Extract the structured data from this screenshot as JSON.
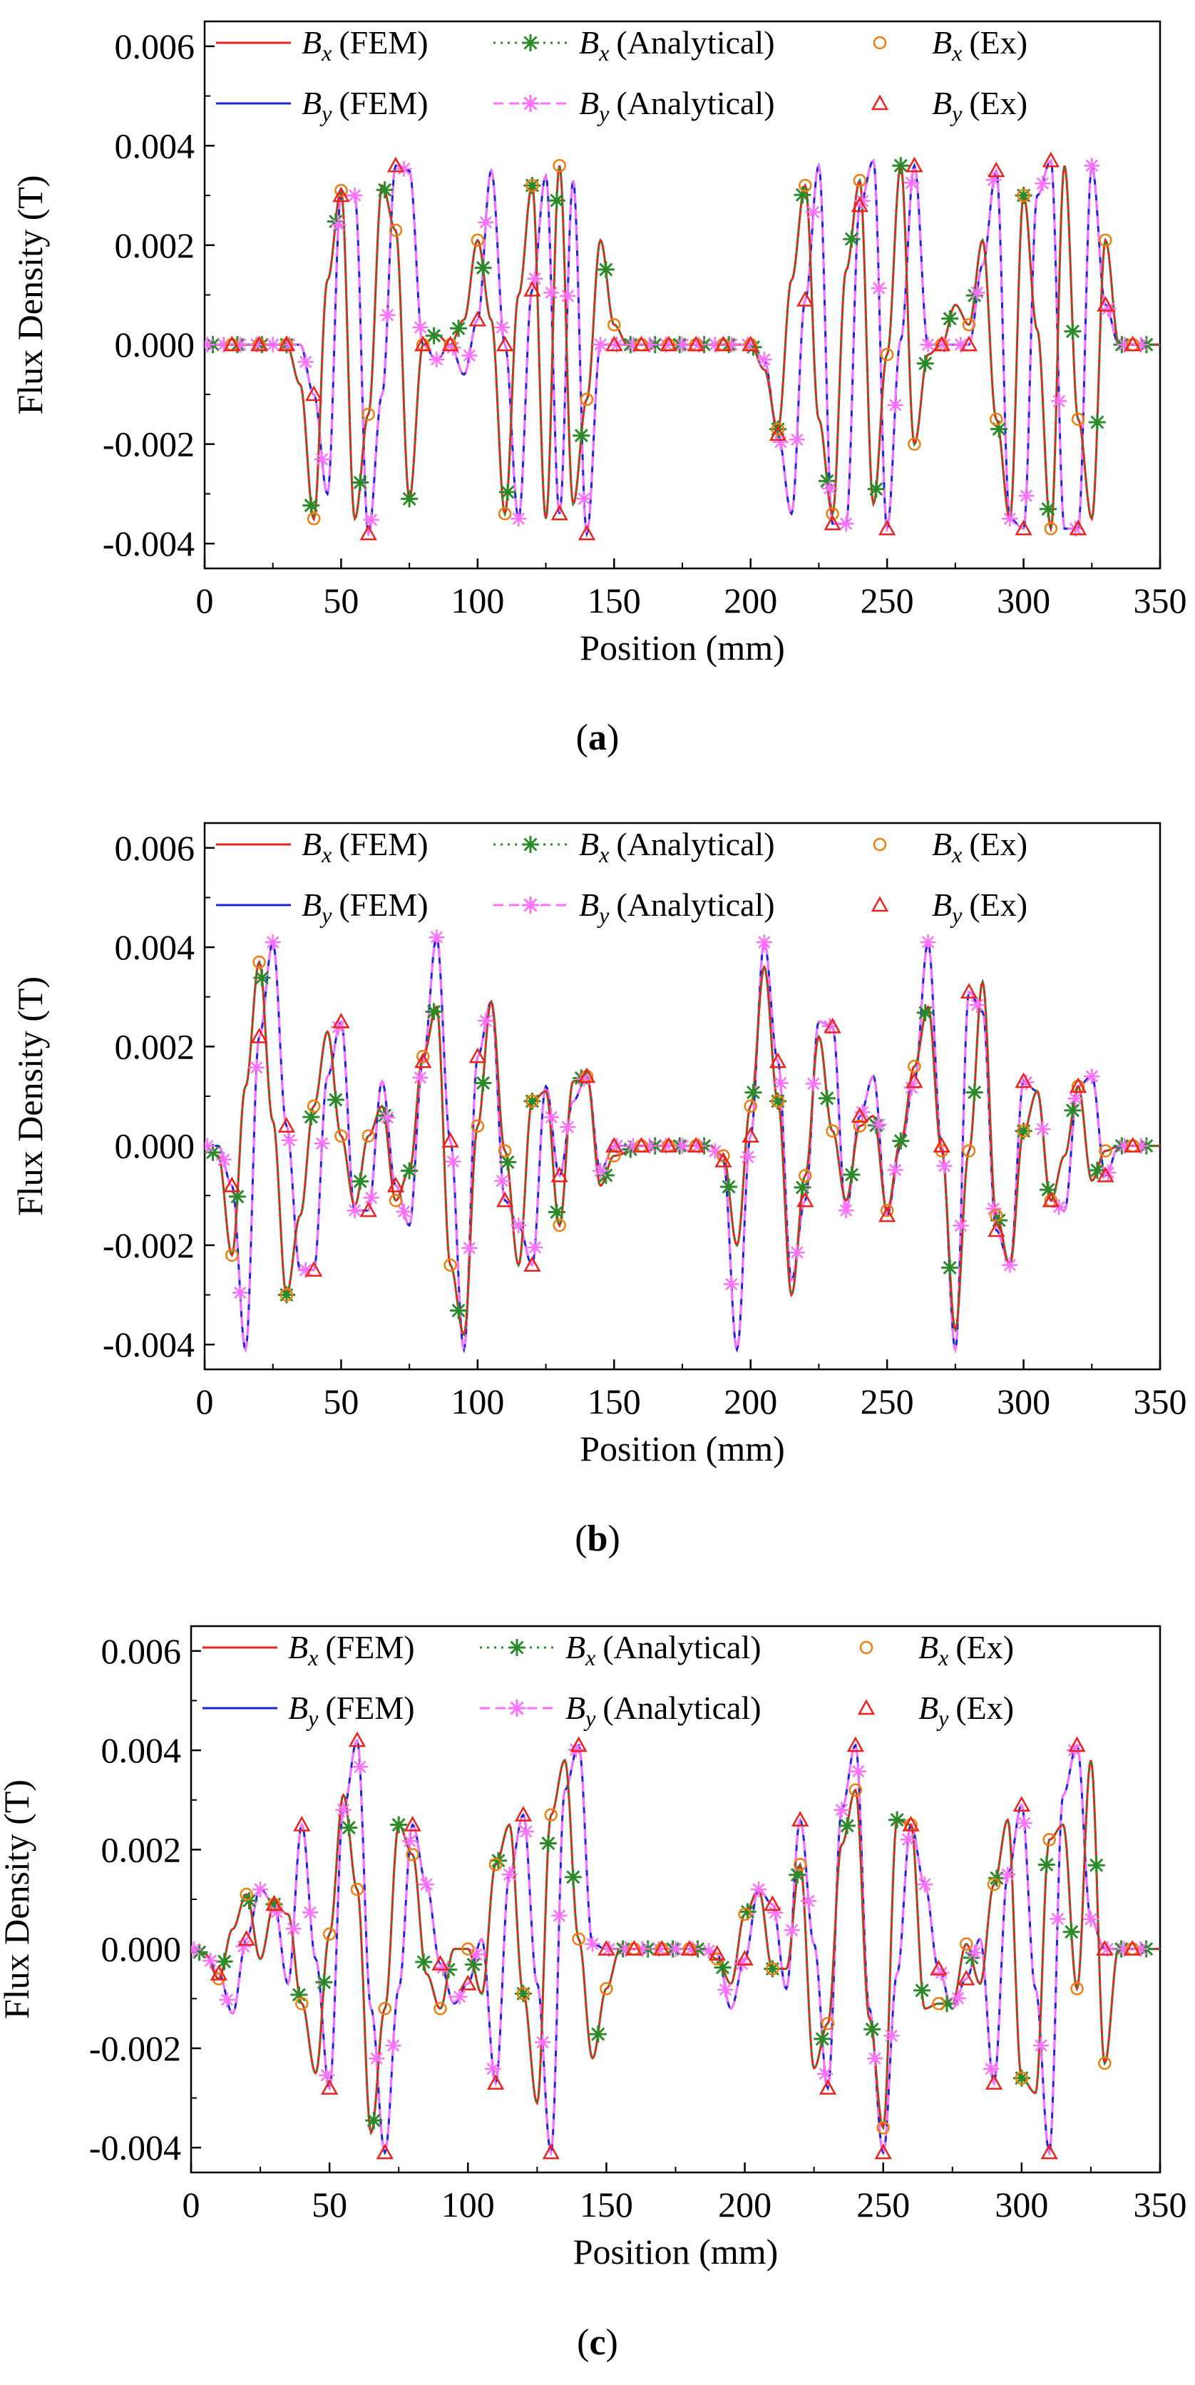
{
  "figure": {
    "xlabel": "Position (mm)",
    "ylabel": "Flux Density (T)"
  },
  "legend": {
    "bx_fem": "(FEM)",
    "bx_analytical": "(Analytical)",
    "bx_ex": "(Ex)",
    "by_fem": "(FEM)",
    "by_analytical": "(Analytical)",
    "by_ex": "(Ex)",
    "b_symbol": "B",
    "x_subscript": "x",
    "y_subscript": "y"
  },
  "colors": {
    "bx_fem": "#e8231f",
    "by_fem": "#1a24d6",
    "bx_analytical": "#2a8a2a",
    "by_analytical": "#ff70ff",
    "bx_ex": "#e87f10",
    "by_ex": "#e8231f"
  },
  "chart_data": [
    {
      "type": "line",
      "panel_label": "a",
      "xlabel": "Position (mm)",
      "ylabel": "Flux Density (T)",
      "xlim": [
        0,
        350
      ],
      "ylim": [
        -0.0045,
        0.0065
      ],
      "xticks": [
        "0",
        "50",
        "100",
        "150",
        "200",
        "250",
        "300",
        "350"
      ],
      "yticks": [
        "-0.004",
        "-0.002",
        "0.000",
        "0.002",
        "0.004",
        "0.006"
      ],
      "ytick_values": [
        -0.004,
        -0.002,
        0,
        0.002,
        0.004,
        0.006
      ],
      "series": [
        {
          "name": "Bx (FEM)",
          "style": "solid",
          "x": [
            0,
            30,
            35,
            40,
            45,
            50,
            55,
            60,
            65,
            70,
            75,
            80,
            85,
            90,
            95,
            100,
            105,
            110,
            115,
            120,
            125,
            130,
            135,
            140,
            145,
            150,
            155,
            200,
            205,
            210,
            215,
            220,
            225,
            230,
            235,
            240,
            245,
            250,
            255,
            260,
            265,
            270,
            275,
            280,
            285,
            290,
            295,
            300,
            305,
            310,
            315,
            320,
            325,
            330,
            335,
            350
          ],
          "values": [
            0,
            0,
            -0.0008,
            -0.0035,
            0.0013,
            0.0031,
            -0.0035,
            -0.0014,
            0.0032,
            0.0023,
            -0.0031,
            0,
            0.0002,
            0,
            0.0005,
            0.0021,
            0.0005,
            -0.0034,
            0.001,
            0.0032,
            -0.0035,
            0.0036,
            -0.0032,
            -0.0011,
            0.0021,
            0.0004,
            0,
            0,
            -0.0005,
            -0.0017,
            0.0013,
            0.0032,
            -0.0015,
            -0.0034,
            0.0015,
            0.0033,
            -0.0032,
            -0.0002,
            0.0036,
            -0.002,
            -0.0002,
            0,
            0.0008,
            0.0004,
            0.0021,
            -0.0015,
            -0.0035,
            0.003,
            0.0003,
            -0.0037,
            0.0036,
            -0.0015,
            -0.0035,
            0.0021,
            0,
            0
          ]
        },
        {
          "name": "By (FEM)",
          "style": "solid",
          "x": [
            0,
            35,
            40,
            45,
            50,
            55,
            60,
            65,
            70,
            75,
            80,
            85,
            90,
            95,
            100,
            105,
            110,
            115,
            120,
            125,
            130,
            135,
            140,
            145,
            150,
            155,
            200,
            205,
            210,
            215,
            220,
            225,
            230,
            235,
            240,
            245,
            250,
            255,
            260,
            265,
            270,
            275,
            280,
            285,
            290,
            295,
            300,
            305,
            310,
            315,
            320,
            325,
            330,
            335,
            350
          ],
          "values": [
            0,
            0,
            -0.001,
            -0.003,
            0.003,
            0.003,
            -0.0038,
            -0.001,
            0.0036,
            0.0035,
            0,
            -0.0003,
            0,
            -0.0006,
            0.0005,
            0.0035,
            0,
            -0.0035,
            0.0011,
            0.0034,
            -0.0034,
            0.0033,
            -0.0038,
            0,
            0,
            0,
            0,
            -0.0003,
            -0.0018,
            -0.0034,
            0.0009,
            0.0036,
            -0.0036,
            -0.0036,
            0.0028,
            0.0037,
            -0.0037,
            0.0001,
            0.0036,
            0,
            0,
            0,
            0,
            0.0016,
            0.0035,
            -0.0035,
            -0.0037,
            0.003,
            0.0037,
            -0.0037,
            -0.0037,
            0.0036,
            0.0008,
            0,
            0
          ]
        }
      ]
    },
    {
      "type": "line",
      "panel_label": "b",
      "xlabel": "Position (mm)",
      "ylabel": "Flux Density (T)",
      "xlim": [
        0,
        350
      ],
      "ylim": [
        -0.0045,
        0.0065
      ],
      "xticks": [
        "0",
        "50",
        "100",
        "150",
        "200",
        "250",
        "300",
        "350"
      ],
      "yticks": [
        "-0.004",
        "-0.002",
        "0.000",
        "0.002",
        "0.004",
        "0.006"
      ],
      "ytick_values": [
        -0.004,
        -0.002,
        0,
        0.002,
        0.004,
        0.006
      ],
      "series": [
        {
          "name": "Bx (FEM)",
          "style": "solid",
          "x": [
            0,
            5,
            10,
            15,
            20,
            25,
            30,
            35,
            40,
            45,
            50,
            55,
            60,
            65,
            70,
            75,
            80,
            85,
            90,
            95,
            100,
            105,
            110,
            115,
            120,
            125,
            130,
            135,
            140,
            145,
            150,
            160,
            185,
            190,
            195,
            200,
            205,
            210,
            215,
            220,
            225,
            230,
            235,
            240,
            245,
            250,
            255,
            260,
            265,
            270,
            275,
            280,
            285,
            290,
            295,
            300,
            305,
            310,
            315,
            320,
            325,
            330,
            335,
            350
          ],
          "values": [
            0,
            -0.0002,
            -0.0022,
            0.0012,
            0.0037,
            0.0005,
            -0.003,
            -0.0014,
            0.0008,
            0.0023,
            0.0002,
            -0.0012,
            0.0002,
            0.0008,
            -0.0011,
            -0.0005,
            0.0018,
            0.0028,
            -0.0024,
            -0.0038,
            0.0004,
            0.0029,
            -0.0001,
            -0.0024,
            0.0009,
            0.0011,
            -0.0016,
            0.0013,
            0.0014,
            -0.0008,
            -0.0002,
            0,
            0,
            -0.0002,
            -0.002,
            0.0008,
            0.0036,
            0.0009,
            -0.003,
            -0.0006,
            0.0022,
            0.0003,
            -0.0011,
            0.0004,
            0.0006,
            -0.0013,
            0.0001,
            0.0016,
            0.0028,
            -0.0001,
            -0.0037,
            -0.0001,
            0.0033,
            -0.0014,
            -0.0024,
            0.0003,
            0.0011,
            -0.0011,
            -0.0002,
            0.0012,
            -0.0007,
            -0.0001,
            0,
            0
          ]
        },
        {
          "name": "By (FEM)",
          "style": "solid",
          "x": [
            0,
            5,
            10,
            15,
            20,
            25,
            30,
            35,
            40,
            45,
            50,
            55,
            60,
            65,
            70,
            75,
            80,
            85,
            90,
            95,
            100,
            105,
            110,
            115,
            120,
            125,
            130,
            135,
            140,
            145,
            150,
            160,
            185,
            190,
            195,
            200,
            205,
            210,
            215,
            220,
            225,
            230,
            235,
            240,
            245,
            250,
            255,
            260,
            265,
            270,
            275,
            280,
            285,
            290,
            295,
            300,
            305,
            310,
            315,
            320,
            325,
            330,
            335,
            350
          ],
          "values": [
            0,
            0,
            -0.0008,
            -0.0041,
            0.0022,
            0.0041,
            0.0004,
            -0.0025,
            -0.0025,
            0.0014,
            0.0025,
            -0.0013,
            -0.0013,
            0.0013,
            -0.0008,
            -0.0016,
            0.0017,
            0.0042,
            0.0001,
            -0.0041,
            0.0018,
            0.0029,
            -0.0011,
            -0.0016,
            -0.0024,
            0.0012,
            -0.0006,
            0.0009,
            0.0014,
            -0.0005,
            0,
            0,
            0,
            -0.0003,
            -0.0041,
            0.0002,
            0.0041,
            0.0017,
            -0.0027,
            -0.0011,
            0.0025,
            0.0024,
            -0.0013,
            0.0006,
            0.0014,
            -0.0014,
            0,
            0.0013,
            0.0041,
            0,
            -0.0041,
            0.0031,
            0.0027,
            -0.0017,
            -0.0024,
            0.0013,
            0.0011,
            -0.0011,
            -0.0013,
            0.0012,
            0.0014,
            -0.0006,
            0,
            0
          ]
        }
      ]
    },
    {
      "type": "line",
      "panel_label": "c",
      "xlabel": "Position (mm)",
      "ylabel": "Flux Density (T)",
      "xlim": [
        0,
        350
      ],
      "ylim": [
        -0.0045,
        0.0065
      ],
      "xticks": [
        "0",
        "50",
        "100",
        "150",
        "200",
        "250",
        "300",
        "350"
      ],
      "yticks": [
        "-0.004",
        "-0.002",
        "0.000",
        "0.002",
        "0.004",
        "0.006"
      ],
      "ytick_values": [
        -0.004,
        -0.002,
        0,
        0.002,
        0.004,
        0.006
      ],
      "series": [
        {
          "name": "Bx (FEM)",
          "style": "solid",
          "x": [
            0,
            5,
            10,
            15,
            20,
            25,
            30,
            35,
            40,
            45,
            50,
            55,
            60,
            65,
            70,
            75,
            80,
            85,
            90,
            95,
            100,
            105,
            110,
            115,
            120,
            125,
            130,
            135,
            140,
            145,
            150,
            155,
            185,
            190,
            195,
            200,
            205,
            210,
            215,
            220,
            225,
            230,
            235,
            240,
            245,
            250,
            255,
            260,
            265,
            270,
            275,
            280,
            285,
            290,
            295,
            300,
            305,
            310,
            315,
            320,
            325,
            330,
            335,
            350
          ],
          "values": [
            0,
            -0.0001,
            -0.0006,
            0.0004,
            0.0011,
            -0.0002,
            0.0009,
            0.0007,
            -0.0011,
            -0.0025,
            0.0003,
            0.0031,
            0.0012,
            -0.0037,
            -0.0012,
            0.0025,
            0.0019,
            -0.0005,
            -0.0012,
            0,
            0,
            -0.0009,
            0.0017,
            0.0025,
            -0.0009,
            -0.0031,
            0.0027,
            0.0038,
            0.0002,
            -0.0022,
            -0.0008,
            0,
            0,
            -0.0002,
            -0.0007,
            0.0007,
            0.0012,
            -0.0004,
            -0.0004,
            0.0017,
            -0.0024,
            -0.0015,
            0.0021,
            0.0032,
            -0.0014,
            -0.0036,
            0.0026,
            0.0025,
            -0.0012,
            -0.0011,
            -0.0011,
            0.0001,
            -0.0007,
            0.0013,
            0.0026,
            -0.0026,
            -0.0029,
            0.0022,
            0.0025,
            -0.0008,
            0.0038,
            -0.0023,
            0,
            0
          ]
        },
        {
          "name": "By (FEM)",
          "style": "solid",
          "x": [
            0,
            5,
            10,
            15,
            20,
            25,
            30,
            35,
            40,
            45,
            50,
            55,
            60,
            65,
            70,
            75,
            80,
            85,
            90,
            95,
            100,
            105,
            110,
            115,
            120,
            125,
            130,
            135,
            140,
            145,
            150,
            155,
            185,
            190,
            195,
            200,
            205,
            210,
            215,
            220,
            225,
            230,
            235,
            240,
            245,
            250,
            255,
            260,
            265,
            270,
            275,
            280,
            285,
            290,
            295,
            300,
            305,
            310,
            315,
            320,
            325,
            330,
            335,
            350
          ],
          "values": [
            0,
            -0.0001,
            -0.0005,
            -0.0013,
            0.0002,
            0.0012,
            0.0009,
            -0.0007,
            0.0025,
            -0.0002,
            -0.0028,
            0.0028,
            0.0042,
            -0.0012,
            -0.0041,
            -0.0008,
            0.0025,
            0.0013,
            -0.0003,
            -0.0011,
            -0.0007,
            0.0002,
            -0.0027,
            0.0015,
            0.0027,
            -0.0007,
            -0.0041,
            0.0032,
            0.0041,
            0.0001,
            0,
            0,
            0,
            -0.0001,
            -0.0012,
            -0.0002,
            0.0012,
            0.0009,
            -0.0008,
            0.0026,
            0.0001,
            -0.0028,
            0.0028,
            0.0041,
            -0.0012,
            -0.0041,
            -0.0005,
            0.0025,
            0.0013,
            -0.0004,
            -0.0012,
            -0.0006,
            0.0002,
            -0.0027,
            0.0015,
            0.0029,
            -0.0008,
            -0.0041,
            0.0031,
            0.0041,
            0.0006,
            0,
            0,
            0
          ]
        }
      ]
    }
  ]
}
